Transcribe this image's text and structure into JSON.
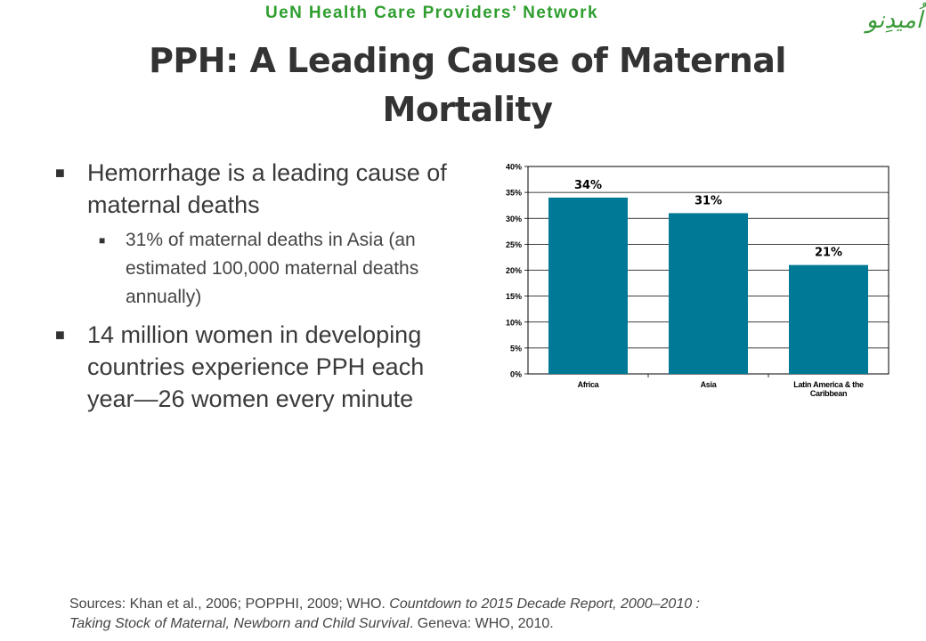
{
  "header": {
    "network": "UeN Health Care Providers’ Network",
    "logo_text": "اُمیدِنو"
  },
  "slide": {
    "title_line1": "PPH: A Leading Cause of Maternal",
    "title_line2": "Mortality"
  },
  "bullets": {
    "b1": "Hemorrhage is a leading cause of maternal deaths",
    "b1_sub": "31% of maternal deaths in Asia (an estimated 100,000 maternal deaths annually)",
    "b2": "14 million women in developing countries experience PPH each year—26 women every minute"
  },
  "chart_data": {
    "type": "bar",
    "categories": [
      "Africa",
      "Asia",
      "Latin America & the Caribbean"
    ],
    "values": [
      34,
      31,
      21
    ],
    "data_labels": [
      "34%",
      "31%",
      "21%"
    ],
    "ylim": [
      0,
      40
    ],
    "yticks": [
      "0%",
      "5%",
      "10%",
      "15%",
      "20%",
      "25%",
      "30%",
      "35%",
      "40%"
    ],
    "grid": true,
    "bar_color": "#007996"
  },
  "footer": {
    "sources_prefix": "Sources: Khan et al., 2006; POPPHI, 2009; WHO. ",
    "sources_italic1": "Countdown to 2015 Decade Report, 2000–2010 :",
    "sources_italic2": "Taking Stock of Maternal, Newborn and Child Survival",
    "sources_suffix": ". Geneva: WHO, 2010."
  }
}
